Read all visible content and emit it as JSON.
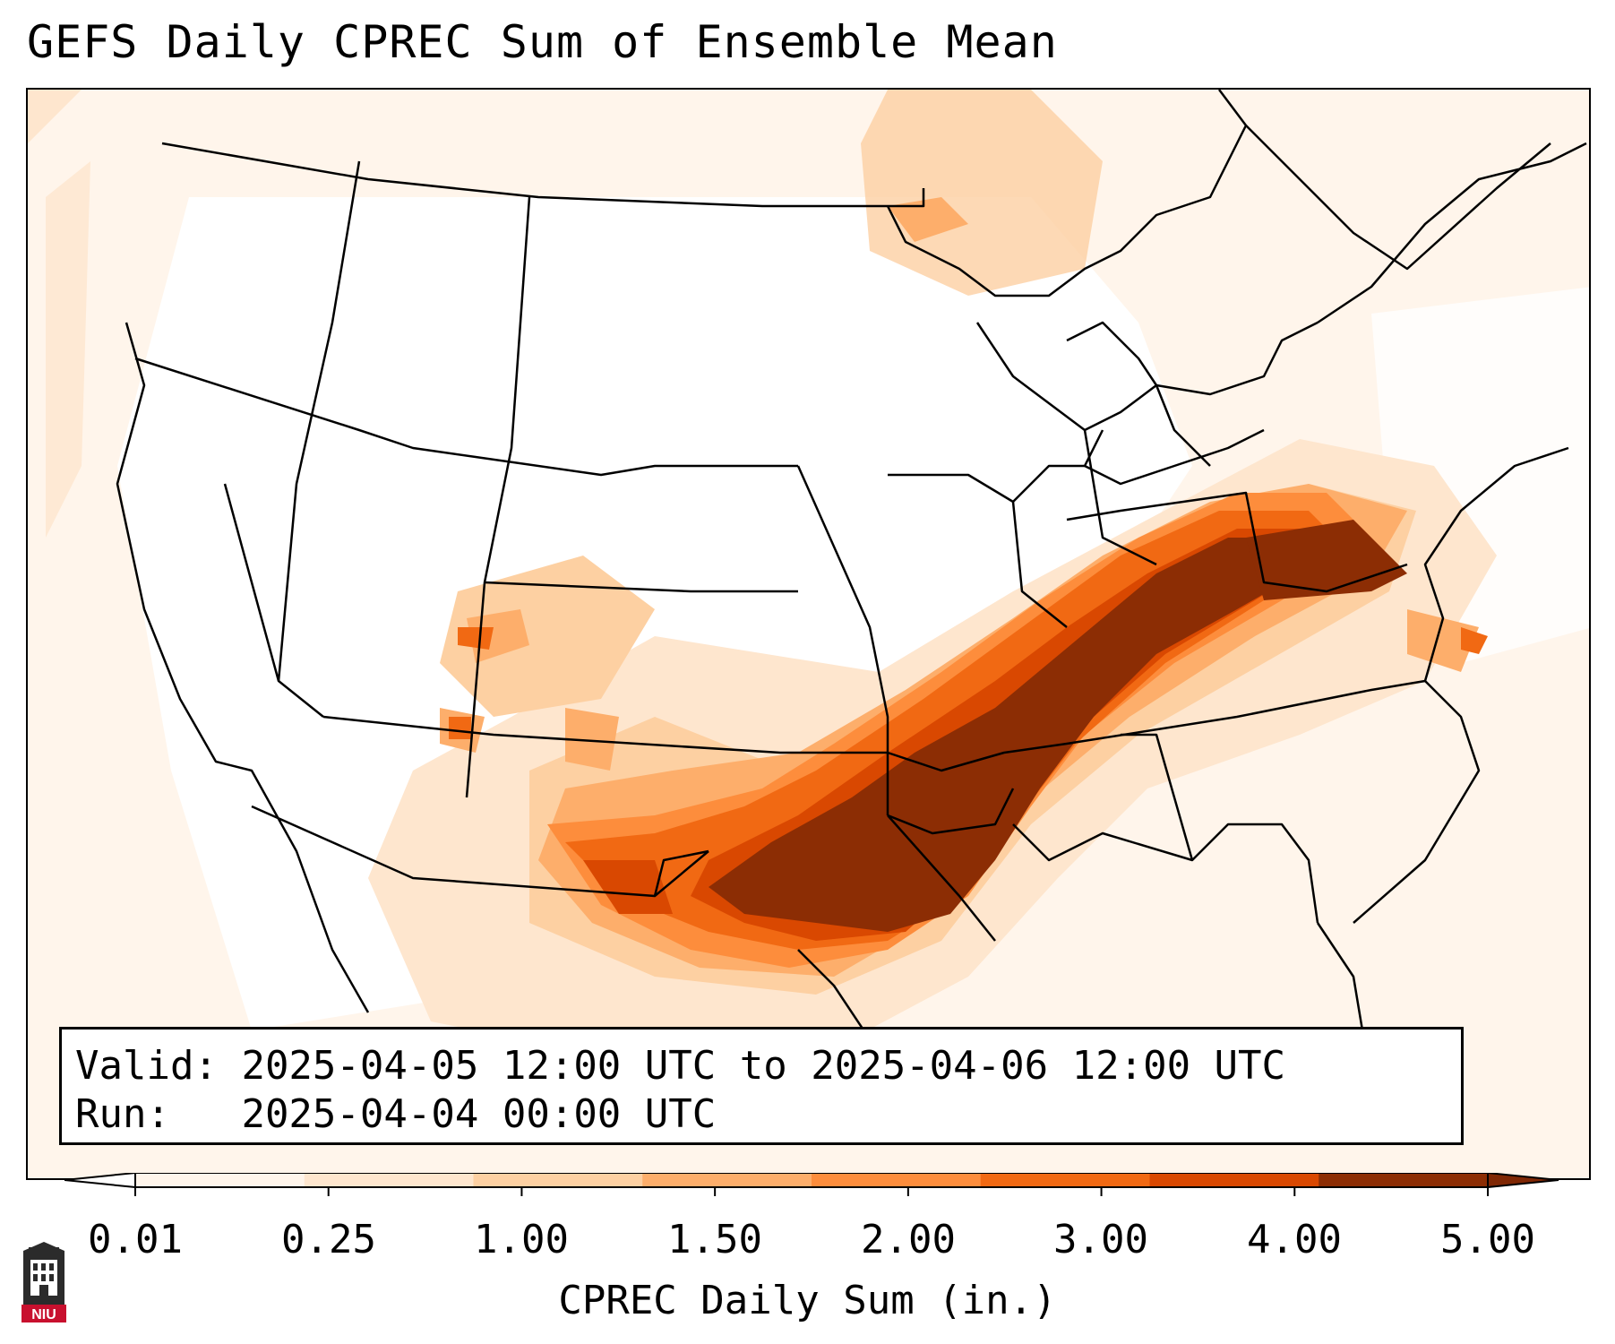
{
  "title": "GEFS Daily CPREC Sum of Ensemble Mean",
  "info": {
    "valid_label": "Valid:",
    "valid_value": "2025-04-05 12:00 UTC to 2025-04-06 12:00 UTC",
    "run_label": "Run:",
    "run_value": "2025-04-04 00:00 UTC"
  },
  "colorbar": {
    "label": "CPREC Daily Sum (in.)",
    "ticks": [
      "0.01",
      "0.25",
      "1.00",
      "1.50",
      "2.00",
      "3.00",
      "4.00",
      "5.00"
    ],
    "colors": [
      "#fff5eb",
      "#fee6ce",
      "#fdd0a2",
      "#fdae6b",
      "#fd8d3c",
      "#f16913",
      "#d94801",
      "#8c2d04"
    ],
    "under_color": "#ffffff",
    "over_color": "#7f2704",
    "extend": "both"
  },
  "map": {
    "projection": "Lambert conformal, CONUS",
    "line_color": "#000000",
    "heaviest_color": "#8c2d04"
  },
  "logo": {
    "text": "NIU",
    "color": "#c8102e",
    "icon": "university-tower-icon"
  }
}
